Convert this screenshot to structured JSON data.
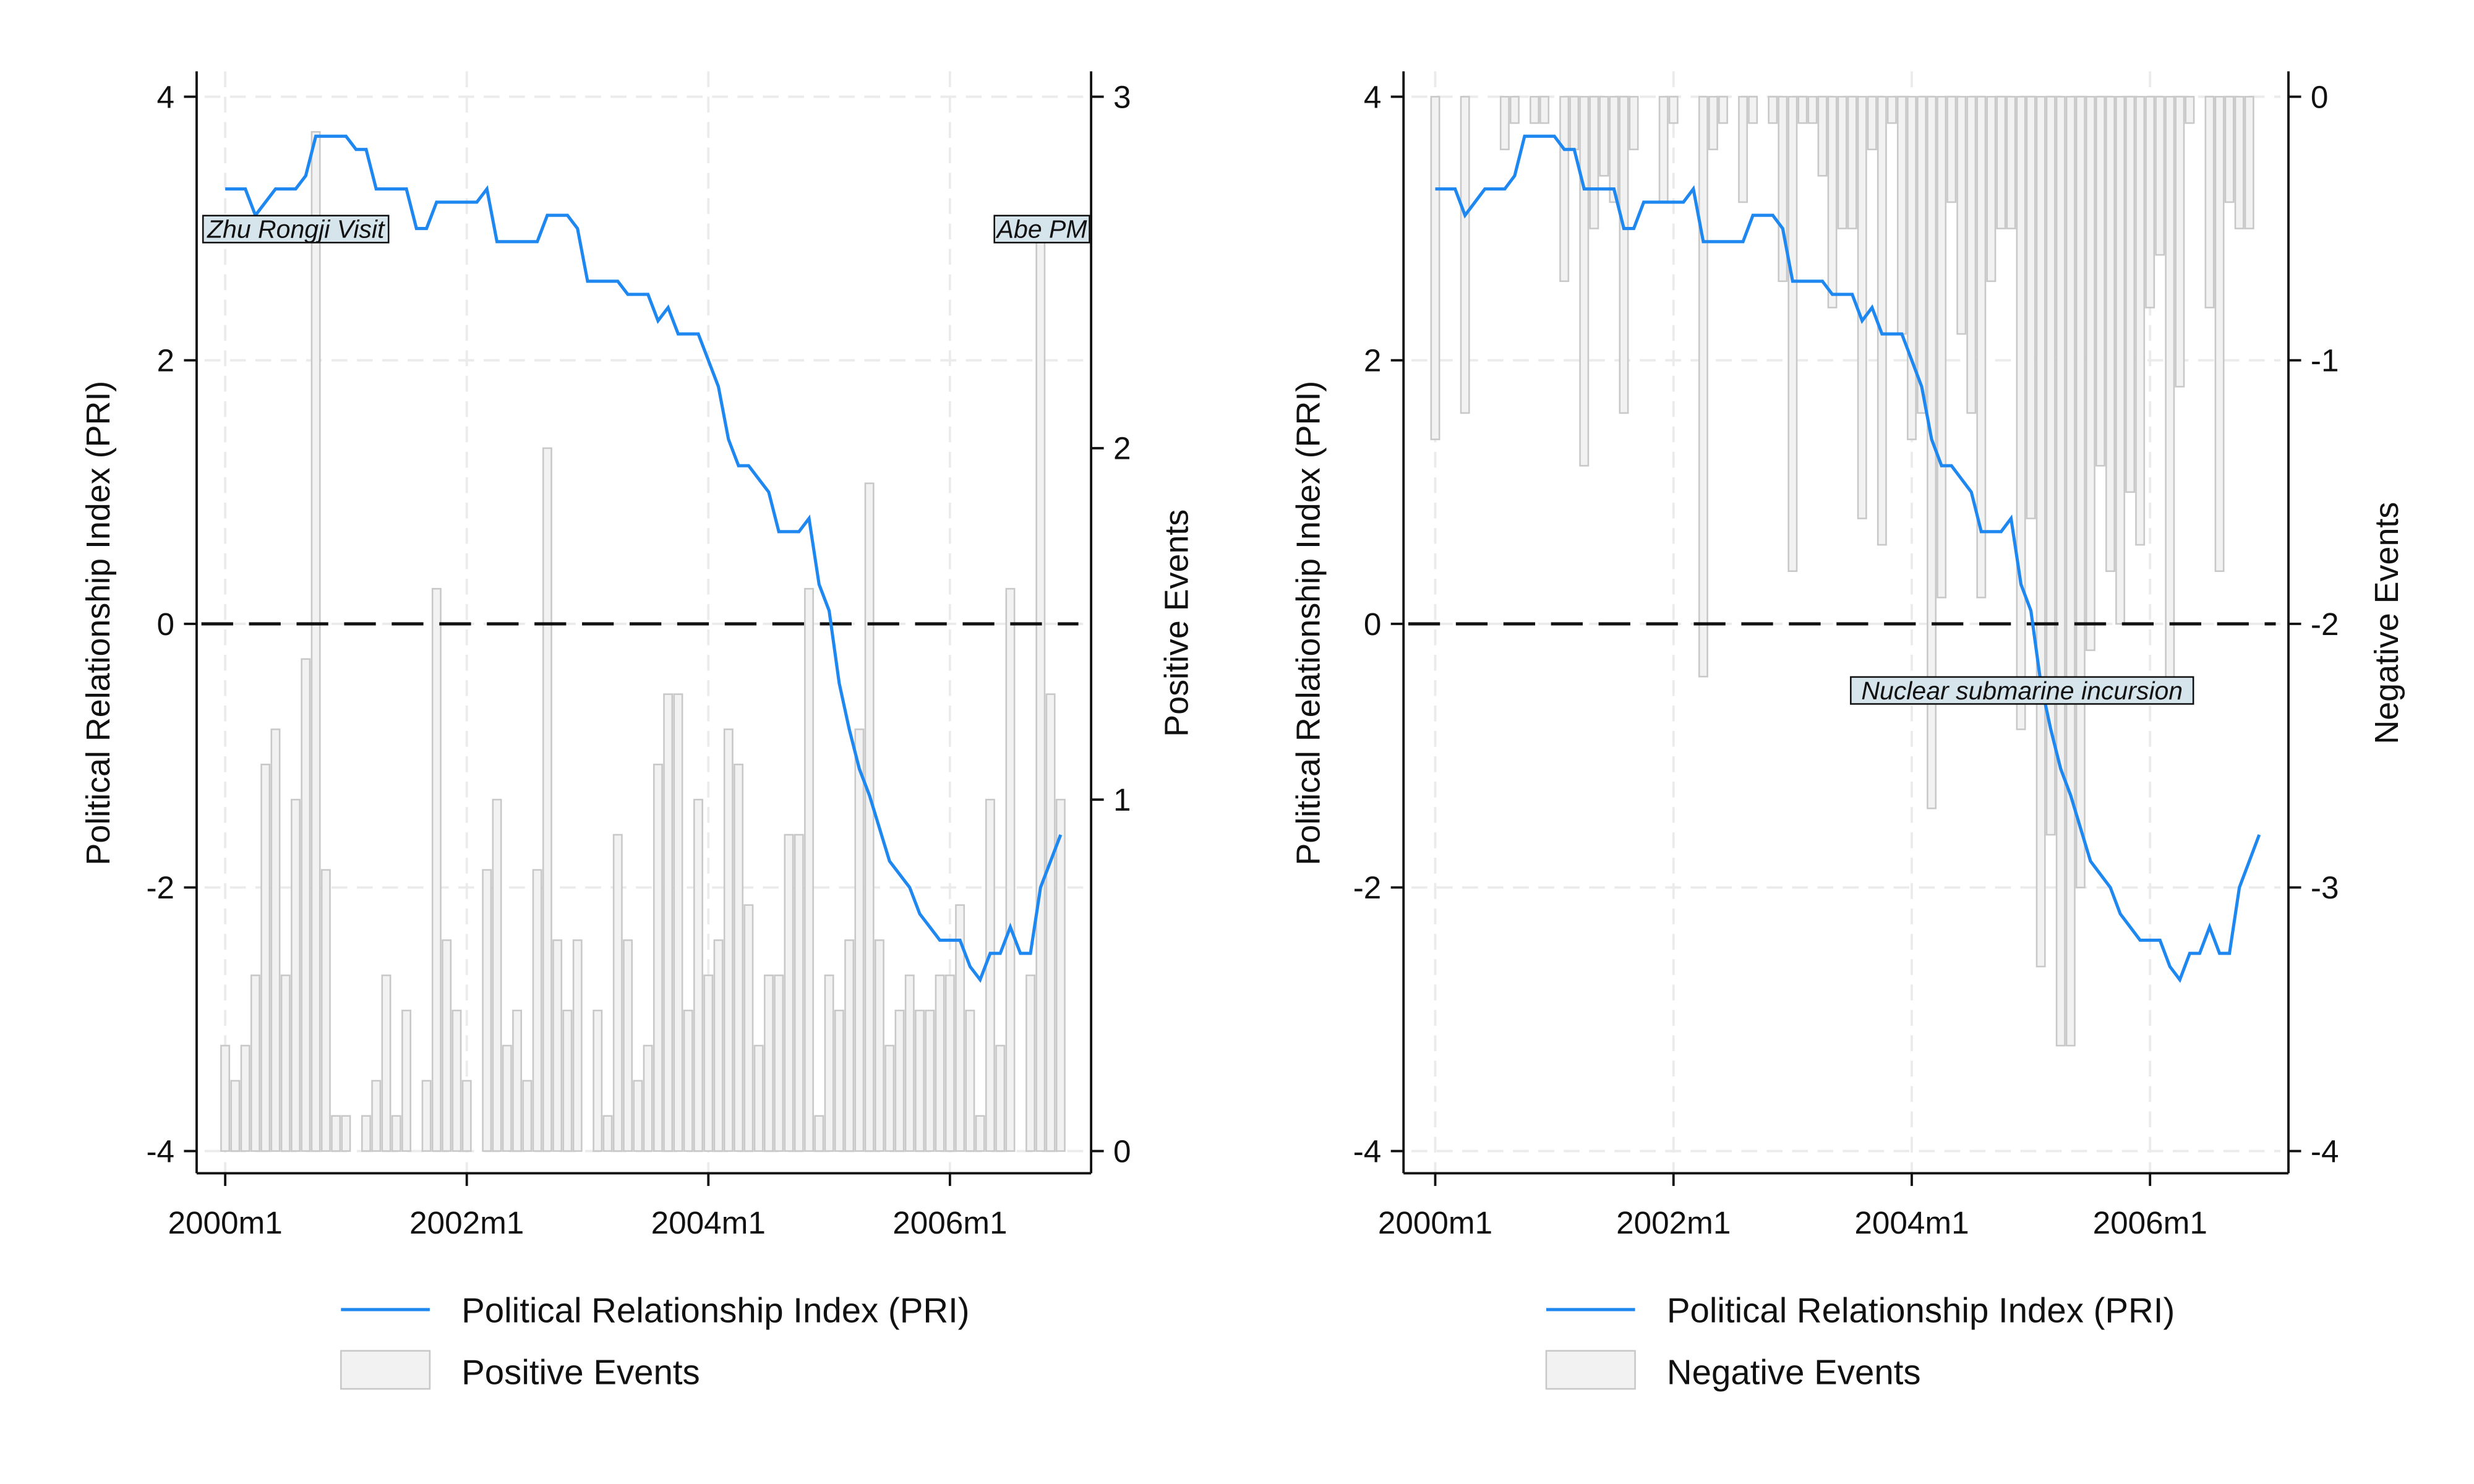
{
  "chart_data": [
    {
      "type": "bar+line",
      "x_start": "2000m1",
      "x_end": "2006m12",
      "x_ticks": [
        "2000m1",
        "2002m1",
        "2004m1",
        "2006m1"
      ],
      "ylabel_left": "Political Relationship Index (PRI)",
      "ylabel_right": "Positive Events",
      "ylim_left": [
        -4,
        4
      ],
      "yticks_left": [
        "-4",
        "-2",
        "0",
        "2",
        "4"
      ],
      "ylim_right": [
        0,
        3
      ],
      "yticks_right": [
        "0",
        "1",
        "2",
        "3"
      ],
      "grid": true,
      "reference_line": 0,
      "legend_position": "bottom",
      "series": [
        {
          "name": "Political Relationship Index (PRI)",
          "type": "line",
          "axis": "left",
          "color": "#1e88f0",
          "values": [
            3.3,
            3.3,
            3.3,
            3.1,
            3.2,
            3.3,
            3.3,
            3.3,
            3.4,
            3.7,
            3.7,
            3.7,
            3.7,
            3.6,
            3.6,
            3.3,
            3.3,
            3.3,
            3.3,
            3.0,
            3.0,
            3.2,
            3.2,
            3.2,
            3.2,
            3.2,
            3.3,
            2.9,
            2.9,
            2.9,
            2.9,
            2.9,
            3.1,
            3.1,
            3.1,
            3.0,
            2.6,
            2.6,
            2.6,
            2.6,
            2.5,
            2.5,
            2.5,
            2.3,
            2.4,
            2.2,
            2.2,
            2.2,
            2.0,
            1.8,
            1.4,
            1.2,
            1.2,
            1.1,
            1.0,
            0.7,
            0.7,
            0.7,
            0.8,
            0.3,
            0.1,
            -0.45,
            -0.8,
            -1.1,
            -1.3,
            -1.55,
            -1.8,
            -1.9,
            -2.0,
            -2.2,
            -2.3,
            -2.4,
            -2.4,
            -2.4,
            -2.6,
            -2.7,
            -2.5,
            -2.5,
            -2.3,
            -2.5,
            -2.5,
            -2.0,
            -1.8,
            -1.6
          ]
        },
        {
          "name": "Positive Events",
          "type": "bar",
          "axis": "right",
          "color": "#f2f2f2",
          "values": [
            0.3,
            0.2,
            0.3,
            0.5,
            1.1,
            1.2,
            0.5,
            1.0,
            1.4,
            2.9,
            0.8,
            0.1,
            0.1,
            0,
            0.1,
            0.2,
            0.5,
            0.1,
            0.4,
            0,
            0.2,
            1.6,
            0.6,
            0.4,
            0.2,
            0,
            0.8,
            1.0,
            0.3,
            0.4,
            0.2,
            0.8,
            2.0,
            0.6,
            0.4,
            0.6,
            0,
            0.4,
            0.1,
            0.9,
            0.6,
            0.2,
            0.3,
            1.1,
            1.3,
            1.3,
            0.4,
            1.0,
            0.5,
            0.6,
            1.2,
            1.1,
            0.7,
            0.3,
            0.5,
            0.5,
            0.9,
            0.9,
            1.6,
            0.1,
            0.5,
            0.4,
            0.6,
            1.2,
            1.9,
            0.6,
            0.3,
            0.4,
            0.5,
            0.4,
            0.4,
            0.5,
            0.5,
            0.7,
            0.4,
            0.1,
            1.0,
            0.3,
            1.6,
            0,
            0.5,
            2.6,
            1.3,
            1.0
          ]
        }
      ],
      "annotations": [
        "Zhu Rongji Visit",
        "Abe PM"
      ]
    },
    {
      "type": "bar+line",
      "x_start": "2000m1",
      "x_end": "2006m12",
      "x_ticks": [
        "2000m1",
        "2002m1",
        "2004m1",
        "2006m1"
      ],
      "ylabel_left": "Political Relationship Index (PRI)",
      "ylabel_right": "Negative Events",
      "ylim_left": [
        -4,
        4
      ],
      "yticks_left": [
        "-4",
        "-2",
        "0",
        "2",
        "4"
      ],
      "ylim_right": [
        -4,
        0
      ],
      "yticks_right": [
        "-4",
        "-3",
        "-2",
        "-1",
        "0"
      ],
      "grid": true,
      "reference_line": 0,
      "legend_position": "bottom",
      "series": [
        {
          "name": "Political Relationship Index (PRI)",
          "type": "line",
          "axis": "left",
          "color": "#1e88f0",
          "values": [
            3.3,
            3.3,
            3.3,
            3.1,
            3.2,
            3.3,
            3.3,
            3.3,
            3.4,
            3.7,
            3.7,
            3.7,
            3.7,
            3.6,
            3.6,
            3.3,
            3.3,
            3.3,
            3.3,
            3.0,
            3.0,
            3.2,
            3.2,
            3.2,
            3.2,
            3.2,
            3.3,
            2.9,
            2.9,
            2.9,
            2.9,
            2.9,
            3.1,
            3.1,
            3.1,
            3.0,
            2.6,
            2.6,
            2.6,
            2.6,
            2.5,
            2.5,
            2.5,
            2.3,
            2.4,
            2.2,
            2.2,
            2.2,
            2.0,
            1.8,
            1.4,
            1.2,
            1.2,
            1.1,
            1.0,
            0.7,
            0.7,
            0.7,
            0.8,
            0.3,
            0.1,
            -0.45,
            -0.8,
            -1.1,
            -1.3,
            -1.55,
            -1.8,
            -1.9,
            -2.0,
            -2.2,
            -2.3,
            -2.4,
            -2.4,
            -2.4,
            -2.6,
            -2.7,
            -2.5,
            -2.5,
            -2.3,
            -2.5,
            -2.5,
            -2.0,
            -1.8,
            -1.6
          ]
        },
        {
          "name": "Negative Events",
          "type": "bar",
          "axis": "right",
          "color": "#f2f2f2",
          "values": [
            -1.3,
            0,
            0,
            -1.2,
            0,
            0,
            0,
            -0.2,
            -0.1,
            0,
            -0.1,
            -0.1,
            0,
            -0.7,
            -0.2,
            -1.4,
            -0.5,
            -0.3,
            -0.4,
            -1.2,
            -0.2,
            0,
            0,
            -0.4,
            -0.1,
            0,
            0,
            -2.2,
            -0.2,
            -0.1,
            0,
            -0.4,
            -0.1,
            0,
            -0.1,
            -0.7,
            -1.8,
            -0.1,
            -0.1,
            -0.3,
            -0.8,
            -0.5,
            -0.5,
            -1.6,
            -0.2,
            -1.7,
            -0.1,
            -0.9,
            -1.3,
            -1.2,
            -2.7,
            -1.9,
            -0.4,
            -0.9,
            -1.2,
            -1.9,
            -0.7,
            -0.5,
            -0.5,
            -2.4,
            -1.6,
            -3.3,
            -2.8,
            -3.6,
            -3.6,
            -3.0,
            -2.1,
            -1.4,
            -1.8,
            -2.0,
            -1.5,
            -1.7,
            -0.8,
            -0.6,
            -2.3,
            -1.1,
            -0.1,
            0,
            -0.8,
            -1.8,
            -0.4,
            -0.5,
            -0.5,
            0
          ]
        }
      ],
      "annotations": [
        "Nuclear submarine incursion"
      ]
    }
  ]
}
